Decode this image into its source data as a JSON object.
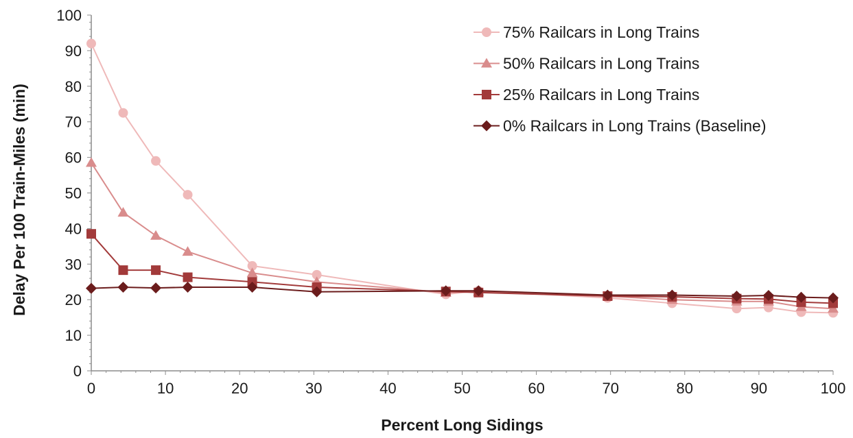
{
  "chart_data": {
    "type": "line",
    "title": "",
    "xlabel": "Percent Long Sidings",
    "ylabel": "Delay Per 100 Train-Miles (min)",
    "xlim": [
      0,
      100
    ],
    "ylim": [
      0,
      100
    ],
    "x_ticks": [
      0,
      10,
      20,
      30,
      40,
      50,
      60,
      70,
      80,
      90,
      100
    ],
    "y_ticks": [
      0,
      10,
      20,
      30,
      40,
      50,
      60,
      70,
      80,
      90,
      100
    ],
    "grid": false,
    "legend_position": "top-right",
    "series": [
      {
        "name": "75% Railcars in Long Trains",
        "marker": "circle",
        "color": "#efb9b9",
        "x": [
          0,
          4.3,
          8.7,
          13,
          21.7,
          30.4,
          47.8,
          52.2,
          69.6,
          78.3,
          87,
          91.3,
          95.7,
          100
        ],
        "y": [
          92,
          72.5,
          59,
          49.5,
          29.5,
          27,
          21.5,
          22.5,
          20.5,
          19,
          17.5,
          17.8,
          16.5,
          16.3
        ]
      },
      {
        "name": "50% Railcars in Long Trains",
        "marker": "triangle",
        "color": "#d98c8c",
        "x": [
          0,
          4.3,
          8.7,
          13,
          21.7,
          30.4,
          47.8,
          52.2,
          69.6,
          78.3,
          87,
          91.3,
          95.7,
          100
        ],
        "y": [
          58.5,
          44.5,
          38,
          33.5,
          27.5,
          25,
          22,
          22.3,
          21,
          20,
          19.5,
          19.5,
          18,
          17.5
        ]
      },
      {
        "name": "25% Railcars in Long Trains",
        "marker": "square",
        "color": "#a23a3a",
        "x": [
          0,
          4.3,
          8.7,
          13,
          21.7,
          30.4,
          47.8,
          52.2,
          69.6,
          78.3,
          87,
          91.3,
          95.7,
          100
        ],
        "y": [
          38.5,
          28.3,
          28.3,
          26.3,
          25,
          23.5,
          22.3,
          22,
          21,
          20.8,
          20.3,
          20.2,
          19.3,
          19
        ]
      },
      {
        "name": "0% Railcars in Long Trains (Baseline)",
        "marker": "diamond",
        "color": "#6b1c1c",
        "x": [
          0,
          4.3,
          8.7,
          13,
          21.7,
          30.4,
          47.8,
          52.2,
          69.6,
          78.3,
          87,
          91.3,
          95.7,
          100
        ],
        "y": [
          23.2,
          23.5,
          23.3,
          23.5,
          23.5,
          22.2,
          22.5,
          22.5,
          21.3,
          21.3,
          21,
          21.2,
          20.7,
          20.5
        ]
      }
    ]
  }
}
